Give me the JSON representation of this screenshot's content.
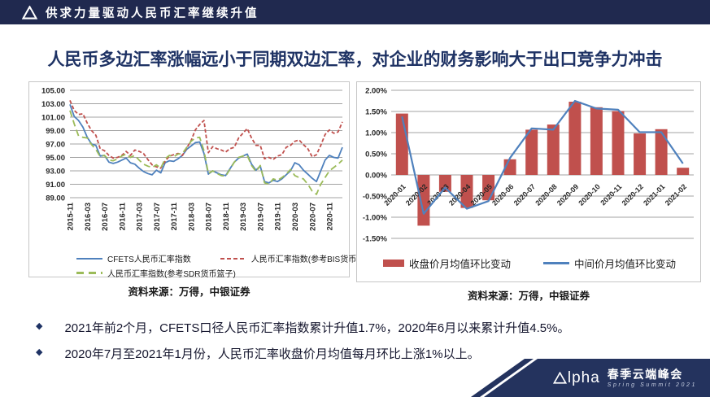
{
  "topbar": {
    "title": "供求力量驱动人民币汇率继续升值"
  },
  "headline": "人民币多边汇率涨幅远小于同期双边汇率，对企业的财务影响大于出口竞争力冲击",
  "bullets": [
    {
      "marker": "◆",
      "text": "2021年前2个月，CFETS口径人民币汇率指数累计升值1.7%，2020年6月以来累计升值4.5%。"
    },
    {
      "marker": "◆",
      "text": "2020年7月至2021年1月份，人民币汇率收盘价月均值每月环比上涨1%以上。"
    }
  ],
  "footer": {
    "brand": "Alpha",
    "event": "春季云端峰会",
    "subtitle": "Spring Summit 2021"
  },
  "colors": {
    "navy_bar": "#20294f",
    "headline": "#1e3264",
    "bar_red": "#c0504d",
    "line_blue": "#4f81bd",
    "line_green": "#9bbb59",
    "banner_navy": "#24335e"
  },
  "chart_data": [
    {
      "type": "line",
      "title": "",
      "ylim": [
        89,
        105
      ],
      "ytick_step": 2,
      "grid": true,
      "legend_position": "bottom",
      "tick_interval": 4,
      "x_tick_labels": [
        "2015-11",
        "2016-03",
        "2016-07",
        "2016-11",
        "2017-03",
        "2017-07",
        "2017-11",
        "2018-03",
        "2018-07",
        "2018-11",
        "2019-03",
        "2019-07",
        "2019-11",
        "2020-03",
        "2020-07",
        "2020-11"
      ],
      "series": [
        {
          "name": "CFETS人民币汇率指数",
          "color": "#4f81bd",
          "dash": "",
          "values": [
            102.9,
            101.1,
            100.5,
            99.5,
            98.0,
            97.0,
            96.8,
            95.2,
            95.3,
            94.3,
            94.1,
            94.3,
            94.6,
            94.9,
            94.2,
            94.0,
            93.4,
            92.9,
            92.6,
            92.4,
            93.1,
            92.7,
            94.2,
            94.5,
            94.4,
            94.8,
            95.3,
            96.2,
            96.7,
            97.2,
            97.3,
            95.6,
            92.5,
            93.0,
            92.7,
            92.4,
            92.3,
            93.3,
            94.3,
            94.9,
            95.2,
            95.5,
            94.0,
            93.1,
            93.7,
            91.4,
            91.2,
            91.6,
            91.4,
            91.8,
            92.4,
            93.0,
            94.2,
            93.9,
            93.1,
            92.5,
            91.9,
            91.4,
            93.0,
            94.6,
            95.3,
            95.0,
            94.9,
            96.5
          ]
        },
        {
          "name": "人民币汇率指数(参考BIS货币篮子)",
          "color": "#c0504d",
          "dash": "4.5 2.5",
          "values": [
            103.5,
            102.0,
            101.4,
            101.5,
            100.1,
            99.0,
            98.3,
            96.3,
            96.0,
            95.3,
            94.9,
            95.0,
            95.3,
            95.9,
            95.3,
            96.1,
            95.9,
            95.6,
            94.7,
            93.9,
            93.6,
            93.4,
            94.4,
            95.2,
            95.4,
            95.6,
            95.3,
            96.4,
            97.5,
            99.1,
            99.9,
            100.5,
            95.7,
            96.6,
            96.3,
            96.1,
            95.8,
            96.3,
            96.5,
            97.9,
            98.6,
            99.3,
            97.9,
            96.8,
            96.8,
            94.8,
            95.0,
            94.7,
            95.2,
            95.4,
            96.5,
            96.8,
            97.4,
            97.6,
            96.9,
            96.3,
            95.1,
            95.4,
            96.8,
            98.4,
            99.1,
            98.6,
            98.8,
            100.3
          ]
        },
        {
          "name": "人民币汇率指数(参考SDR货币篮子)",
          "color": "#9bbb59",
          "dash": "8 4.5",
          "values": [
            102.0,
            100.0,
            98.2,
            98.0,
            97.9,
            96.9,
            96.2,
            95.1,
            95.3,
            94.6,
            94.5,
            94.8,
            95.2,
            95.5,
            95.0,
            95.3,
            94.6,
            94.0,
            93.7,
            93.5,
            93.9,
            93.4,
            94.8,
            95.3,
            95.1,
            95.5,
            95.6,
            96.5,
            97.4,
            97.9,
            98.0,
            96.0,
            92.6,
            93.0,
            92.6,
            92.3,
            92.2,
            93.2,
            94.3,
            95.0,
            95.2,
            95.3,
            93.8,
            92.9,
            93.8,
            91.2,
            91.0,
            91.8,
            91.6,
            92.0,
            92.5,
            93.2,
            92.3,
            92.0,
            91.8,
            91.0,
            90.0,
            89.5,
            91.0,
            92.0,
            93.0,
            93.5,
            94.0,
            94.6
          ]
        }
      ],
      "source": "资料来源：万得，中银证券"
    },
    {
      "type": "bar",
      "title": "",
      "ylim": [
        -1.5,
        2.0
      ],
      "ytick_step": 0.5,
      "grid": true,
      "legend_position": "bottom",
      "categories": [
        "2020-01",
        "2020-02",
        "2020-03",
        "2020-04",
        "2020-05",
        "2020-06",
        "2020-07",
        "2020-08",
        "2020-09",
        "2020-10",
        "2020-11",
        "2020-12",
        "2021-01",
        "2021-02"
      ],
      "series": [
        {
          "name": "收盘价月均值环比变动",
          "type": "bar",
          "color": "#c0504d",
          "values": [
            1.45,
            -1.2,
            -0.4,
            -0.78,
            -0.6,
            0.37,
            1.07,
            1.19,
            1.73,
            1.6,
            1.51,
            0.98,
            1.08,
            0.17
          ]
        },
        {
          "name": "中间价月均值环比变动",
          "type": "line",
          "color": "#4f81bd",
          "values": [
            1.38,
            -0.92,
            -0.3,
            -0.8,
            -0.62,
            0.4,
            1.1,
            1.07,
            1.75,
            1.57,
            1.54,
            1.01,
            1.01,
            0.27
          ]
        }
      ],
      "source": "资料来源：万得，中银证券"
    }
  ]
}
